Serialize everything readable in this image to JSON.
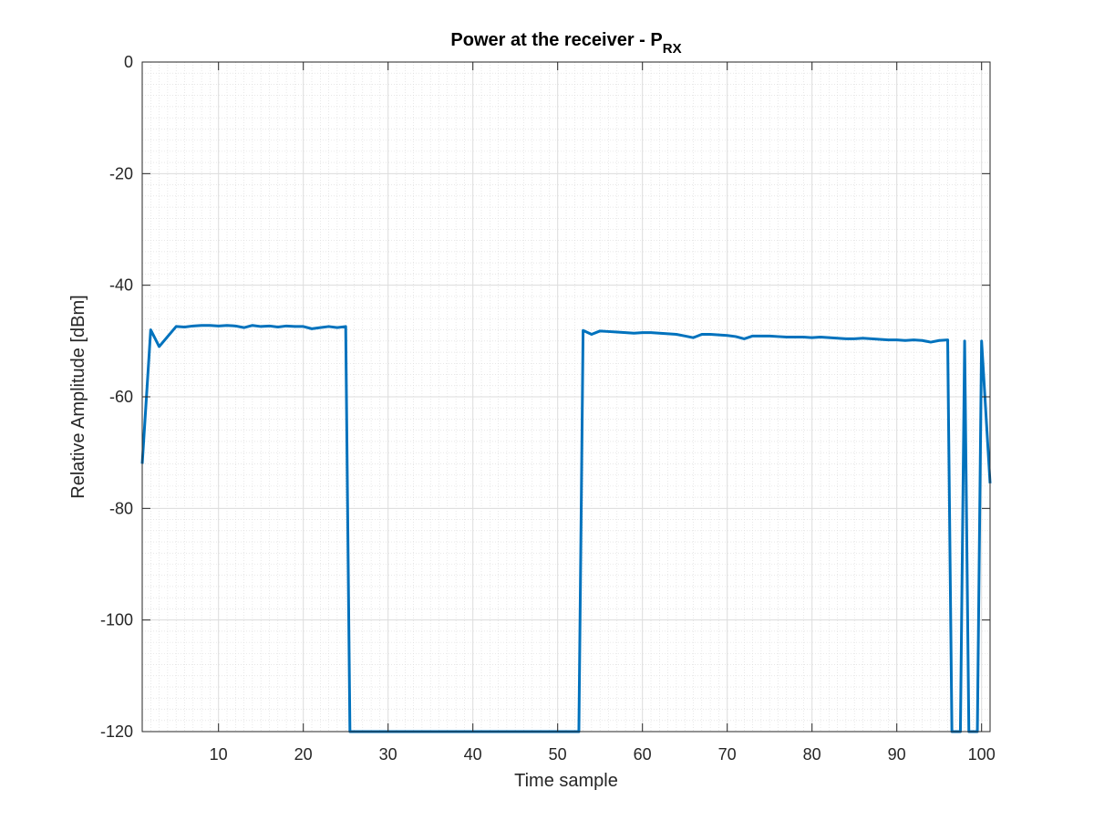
{
  "chart_data": {
    "type": "line",
    "title": "Power at the receiver - P",
    "title_subscript": "RX",
    "xlabel": "Time sample",
    "ylabel": "Relative Amplitude [dBm]",
    "xlim": [
      1,
      101
    ],
    "ylim": [
      -120,
      0
    ],
    "xticks": [
      10,
      20,
      30,
      40,
      50,
      60,
      70,
      80,
      90,
      100
    ],
    "yticks": [
      0,
      -20,
      -40,
      -60,
      -80,
      -100,
      -120
    ],
    "xtick_labels": [
      "10",
      "20",
      "30",
      "40",
      "50",
      "60",
      "70",
      "80",
      "90",
      "100"
    ],
    "ytick_labels": [
      "0",
      "-20",
      "-40",
      "-60",
      "-80",
      "-100",
      "-120"
    ],
    "grid": true,
    "minor_grid": true,
    "line_color": "#0072BD",
    "series": [
      {
        "x": [
          1,
          2,
          3,
          4,
          5,
          6,
          7,
          8,
          9,
          10,
          11,
          12,
          13,
          14,
          15,
          16,
          17,
          18,
          19,
          20,
          21,
          22,
          23,
          24,
          25,
          25.5,
          52.5,
          53,
          54,
          55,
          56,
          57,
          58,
          59,
          60,
          61,
          62,
          63,
          64,
          65,
          66,
          67,
          68,
          69,
          70,
          71,
          72,
          73,
          74,
          75,
          76,
          77,
          78,
          79,
          80,
          81,
          82,
          83,
          84,
          85,
          86,
          87,
          88,
          89,
          90,
          91,
          92,
          93,
          94,
          95,
          96,
          96.5,
          97.5,
          98,
          98.5,
          99.5,
          100,
          101
        ],
        "y": [
          -72,
          -48,
          -51,
          -49.2,
          -47.4,
          -47.5,
          -47.3,
          -47.2,
          -47.2,
          -47.3,
          -47.2,
          -47.3,
          -47.6,
          -47.2,
          -47.4,
          -47.3,
          -47.5,
          -47.3,
          -47.4,
          -47.4,
          -47.8,
          -47.6,
          -47.4,
          -47.6,
          -47.4,
          -120,
          -120,
          -48.1,
          -48.8,
          -48.2,
          -48.3,
          -48.4,
          -48.5,
          -48.6,
          -48.5,
          -48.5,
          -48.6,
          -48.7,
          -48.8,
          -49.1,
          -49.4,
          -48.8,
          -48.8,
          -48.9,
          -49.0,
          -49.2,
          -49.6,
          -49.1,
          -49.1,
          -49.1,
          -49.2,
          -49.3,
          -49.3,
          -49.3,
          -49.4,
          -49.3,
          -49.4,
          -49.5,
          -49.6,
          -49.6,
          -49.5,
          -49.6,
          -49.7,
          -49.8,
          -49.8,
          -49.9,
          -49.8,
          -49.9,
          -50.2,
          -49.9,
          -49.8,
          -120,
          -120,
          -50,
          -120,
          -120,
          -50,
          -75.5
        ]
      }
    ]
  }
}
